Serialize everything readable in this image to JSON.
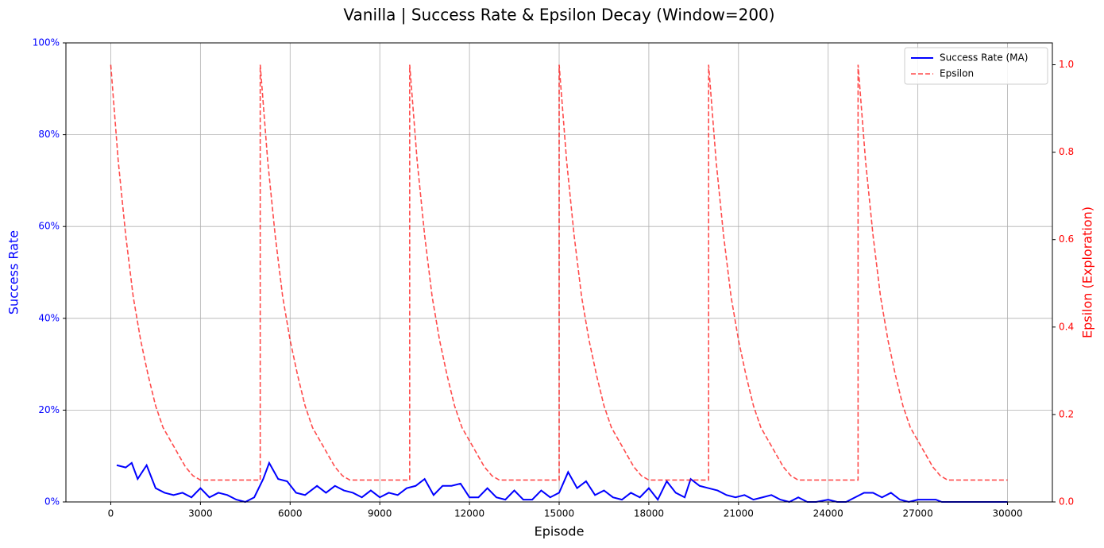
{
  "chart_data": {
    "type": "line",
    "title": "Vanilla | Success Rate & Epsilon Decay (Window=200)",
    "x_label": "Episode",
    "y_label": "Success Rate",
    "y2_label": "Epsilon (Exploration)",
    "xlim": [
      -1500,
      31500
    ],
    "xticks": [
      0,
      3000,
      6000,
      9000,
      12000,
      15000,
      18000,
      21000,
      24000,
      27000,
      30000
    ],
    "ylim": [
      0,
      100
    ],
    "yticks": [
      {
        "value": 0,
        "label": "0%"
      },
      {
        "value": 20,
        "label": "20%"
      },
      {
        "value": 40,
        "label": "40%"
      },
      {
        "value": 60,
        "label": "60%"
      },
      {
        "value": 80,
        "label": "80%"
      },
      {
        "value": 100,
        "label": "100%"
      }
    ],
    "y2lim": [
      0,
      1.05
    ],
    "y2ticks": [
      {
        "value": 0,
        "label": "0.0"
      },
      0.2,
      0.4,
      0.6,
      0.8,
      {
        "value": 1,
        "label": "1.0"
      }
    ],
    "grid": true,
    "legend": "upper right",
    "series": [
      {
        "name": "Success Rate (MA)",
        "color": "#0000ff",
        "style": "solid",
        "x": [
          200,
          500,
          700,
          900,
          1200,
          1500,
          1800,
          2100,
          2400,
          2700,
          3000,
          3300,
          3600,
          3900,
          4200,
          4500,
          4800,
          5100,
          5300,
          5600,
          5900,
          6200,
          6500,
          6900,
          7200,
          7500,
          7800,
          8100,
          8400,
          8700,
          9000,
          9300,
          9600,
          9900,
          10200,
          10500,
          10800,
          11100,
          11400,
          11700,
          12000,
          12300,
          12600,
          12900,
          13200,
          13500,
          13800,
          14100,
          14400,
          14700,
          15000,
          15300,
          15600,
          15900,
          16200,
          16500,
          16800,
          17100,
          17400,
          17700,
          18000,
          18300,
          18600,
          18900,
          19200,
          19400,
          19700,
          20000,
          20300,
          20600,
          20900,
          21200,
          21500,
          21800,
          22100,
          22400,
          22700,
          23000,
          23300,
          23600,
          24000,
          24300,
          24600,
          24900,
          25200,
          25500,
          25800,
          26100,
          26400,
          26700,
          27000,
          27300,
          27600,
          27800,
          28500,
          29000,
          30000
        ],
        "values": [
          8,
          7.5,
          8.5,
          5,
          8,
          3,
          2,
          1.5,
          2,
          1,
          3,
          1,
          2,
          1.5,
          0.5,
          0,
          1,
          5,
          8.5,
          5,
          4.5,
          2,
          1.5,
          3.5,
          2,
          3.5,
          2.5,
          2,
          1,
          2.5,
          1,
          2,
          1.5,
          3,
          3.5,
          5,
          1.5,
          3.5,
          3.5,
          4,
          1,
          1,
          3,
          1,
          0.5,
          2.5,
          0.5,
          0.5,
          2.5,
          1,
          2,
          6.5,
          3,
          4.5,
          1.5,
          2.5,
          1,
          0.5,
          2,
          1,
          3,
          0.5,
          4.5,
          2,
          1,
          5,
          3.5,
          3,
          2.5,
          1.5,
          1,
          1.5,
          0.5,
          1,
          1.5,
          0.5,
          0,
          1,
          0,
          0,
          0.5,
          0,
          0,
          1,
          2,
          2,
          1,
          2,
          0.5,
          0,
          0.5,
          0.5,
          0.5,
          0,
          0,
          0,
          0
        ]
      },
      {
        "name": "Epsilon",
        "color": "#ff0000",
        "style": "dashed",
        "axis": "y2",
        "x": [
          0,
          250,
          500,
          750,
          1000,
          1250,
          1500,
          1750,
          2000,
          2250,
          2500,
          2750,
          3000,
          5000,
          5000,
          5250,
          5500,
          5750,
          6000,
          6250,
          6500,
          6750,
          7000,
          7250,
          7500,
          7750,
          8000,
          10000,
          10000,
          10250,
          10500,
          10750,
          11000,
          11250,
          11500,
          11750,
          12000,
          12250,
          12500,
          12750,
          13000,
          15000,
          15000,
          15250,
          15500,
          15750,
          16000,
          16250,
          16500,
          16750,
          17000,
          17250,
          17500,
          17750,
          18000,
          20000,
          20000,
          20250,
          20500,
          20750,
          21000,
          21250,
          21500,
          21750,
          22000,
          22250,
          22500,
          22750,
          23000,
          25000,
          25000,
          25250,
          25500,
          25750,
          26000,
          26250,
          26500,
          26750,
          27000,
          27250,
          27500,
          27750,
          28000,
          30000
        ],
        "values": [
          1,
          0.78,
          0.61,
          0.47,
          0.37,
          0.29,
          0.22,
          0.17,
          0.14,
          0.11,
          0.08,
          0.06,
          0.05,
          0.05,
          1,
          0.78,
          0.61,
          0.47,
          0.37,
          0.29,
          0.22,
          0.17,
          0.14,
          0.11,
          0.08,
          0.06,
          0.05,
          0.05,
          1,
          0.78,
          0.61,
          0.47,
          0.37,
          0.29,
          0.22,
          0.17,
          0.14,
          0.11,
          0.08,
          0.06,
          0.05,
          0.05,
          1,
          0.78,
          0.61,
          0.47,
          0.37,
          0.29,
          0.22,
          0.17,
          0.14,
          0.11,
          0.08,
          0.06,
          0.05,
          0.05,
          1,
          0.78,
          0.61,
          0.47,
          0.37,
          0.29,
          0.22,
          0.17,
          0.14,
          0.11,
          0.08,
          0.06,
          0.05,
          0.05,
          1,
          0.78,
          0.61,
          0.47,
          0.37,
          0.29,
          0.22,
          0.17,
          0.14,
          0.11,
          0.08,
          0.06,
          0.05,
          0.05
        ]
      }
    ]
  }
}
